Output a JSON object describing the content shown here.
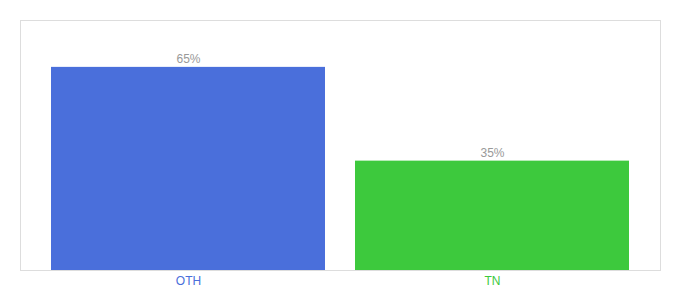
{
  "chart_data": {
    "type": "bar",
    "categories": [
      "OTH",
      "TN"
    ],
    "values": [
      65,
      35
    ],
    "value_labels": [
      "65%",
      "35%"
    ],
    "colors": [
      "#4A6FDB",
      "#3DC93D"
    ],
    "ylim": [
      0,
      80
    ],
    "data_labels": true,
    "tick_labels": "x"
  }
}
